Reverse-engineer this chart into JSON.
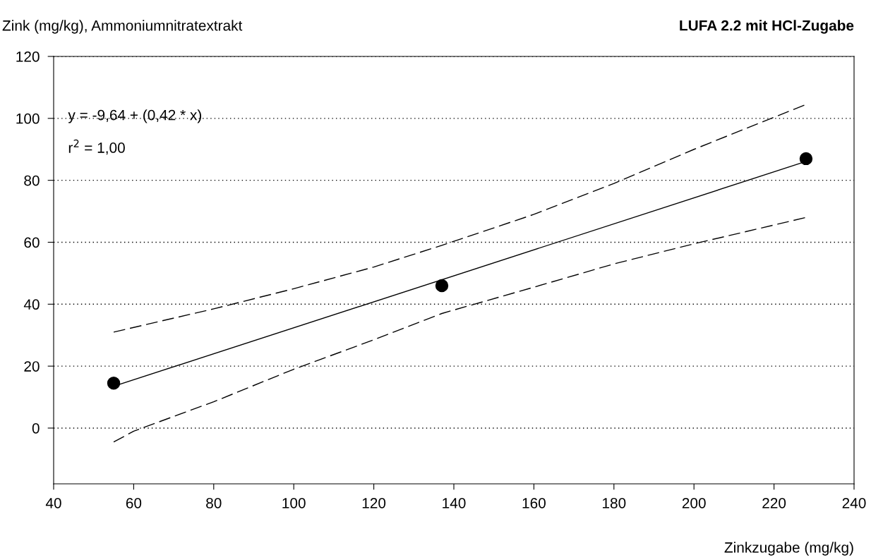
{
  "chart_data": {
    "type": "scatter",
    "title": "LUFA 2.2 mit HCl-Zugabe",
    "ylabel": "Zink (mg/kg), Ammoniumnitratextrakt",
    "xlabel": "Zinkzugabe (mg/kg)",
    "annotations": [
      "y = -9,64 + (0,42 * x)",
      "r$^{2}$ = 1,00"
    ],
    "series": [
      {
        "color": "#000000",
        "marker": "circle",
        "x": [
          55,
          137,
          228
        ],
        "values": [
          14.5,
          46,
          87
        ]
      },
      {
        "type": "line",
        "color": "#000000",
        "line_style": "solid",
        "x": [
          55,
          228
        ],
        "values": [
          13.5,
          86.1
        ]
      },
      {
        "type": "line",
        "color": "#000000",
        "line_style": "dashed",
        "x": [
          55,
          80,
          100,
          120,
          137,
          160,
          180,
          200,
          228
        ],
        "values": [
          31,
          38.5,
          45,
          52,
          59,
          69,
          79,
          90,
          104.5
        ]
      },
      {
        "type": "line",
        "color": "#000000",
        "line_style": "dashed",
        "x": [
          55,
          60,
          80,
          100,
          120,
          137,
          160,
          180,
          200,
          228
        ],
        "values": [
          -4.5,
          -1,
          8.5,
          19,
          28.5,
          37,
          45.5,
          53,
          59.5,
          68
        ]
      }
    ],
    "xlim": [
      40,
      240
    ],
    "xticks": [
      40,
      60,
      80,
      100,
      120,
      140,
      160,
      180,
      200,
      220,
      240
    ],
    "ylim": [
      -18,
      120
    ],
    "yticks": [
      0,
      20,
      40,
      60,
      80,
      100,
      120
    ],
    "grid": "y",
    "legend": false
  }
}
